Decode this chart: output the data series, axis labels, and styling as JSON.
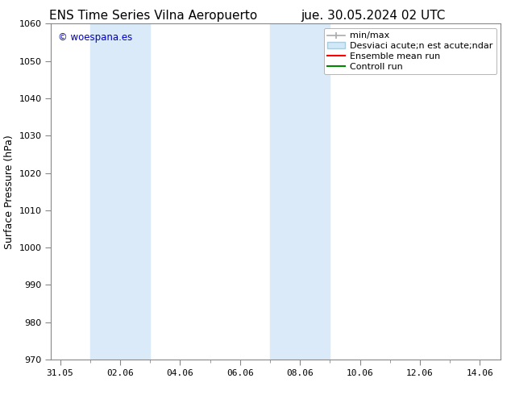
{
  "title_left": "ENS Time Series Vilna Aeropuerto",
  "title_right": "jue. 30.05.2024 02 UTC",
  "ylabel": "Surface Pressure (hPa)",
  "ylim": [
    970,
    1060
  ],
  "yticks": [
    970,
    980,
    990,
    1000,
    1010,
    1020,
    1030,
    1040,
    1050,
    1060
  ],
  "xtick_labels": [
    "31.05",
    "02.06",
    "04.06",
    "06.06",
    "08.06",
    "10.06",
    "12.06",
    "14.06"
  ],
  "xtick_positions": [
    0,
    2,
    4,
    6,
    8,
    10,
    12,
    14
  ],
  "xlim": [
    -0.3,
    14.7
  ],
  "watermark": "© woespana.es",
  "watermark_color": "#0000bb",
  "bg_color": "#ffffff",
  "plot_bg_color": "#ffffff",
  "shaded_regions": [
    {
      "xstart": 1.0,
      "xend": 3.0,
      "color": "#daeaf8"
    },
    {
      "xstart": 7.0,
      "xend": 9.0,
      "color": "#daeaf8"
    }
  ],
  "legend_label_minmax": "min/max",
  "legend_label_desv": "Desviaci acute;n est acute;ndar",
  "legend_label_ensemble": "Ensemble mean run",
  "legend_label_control": "Controll run",
  "legend_color_minmax": "#aaaaaa",
  "legend_color_desv_face": "#d0e8f8",
  "legend_color_desv_edge": "#aaccdd",
  "legend_color_ensemble": "#ff0000",
  "legend_color_control": "#008800",
  "title_fontsize": 11,
  "axis_label_fontsize": 9,
  "tick_fontsize": 8,
  "legend_fontsize": 8
}
